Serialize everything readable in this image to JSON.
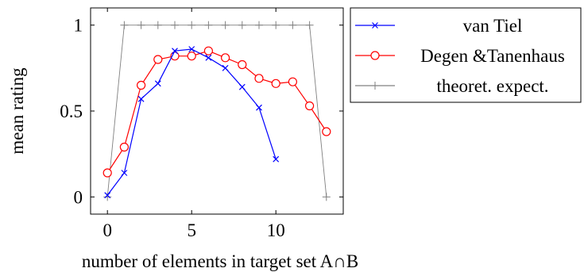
{
  "chart_data": {
    "type": "line",
    "xlabel": "number of elements in target set A∩B",
    "ylabel": "mean rating",
    "xlim": [
      -1,
      14
    ],
    "ylim": [
      -0.1,
      1.1
    ],
    "x_ticks": [
      0,
      5,
      10
    ],
    "x_tick_labels": [
      "0",
      "5",
      "10"
    ],
    "y_ticks": [
      0,
      0.5,
      1
    ],
    "y_tick_labels": [
      "0",
      "0.5",
      "1"
    ],
    "grid": false,
    "legend_position": "outside-right-top",
    "series": [
      {
        "name": "van Tiel",
        "color": "#0000ff",
        "marker": "x",
        "x": [
          0,
          1,
          2,
          3,
          4,
          5,
          6,
          7,
          8,
          9,
          10
        ],
        "y": [
          0.01,
          0.14,
          0.57,
          0.66,
          0.85,
          0.86,
          0.81,
          0.75,
          0.64,
          0.52,
          0.22
        ]
      },
      {
        "name": "Degen &Tanenhaus",
        "color": "#ff0000",
        "marker": "circle",
        "x": [
          0,
          1,
          2,
          3,
          4,
          5,
          6,
          7,
          8,
          9,
          10,
          11,
          12,
          13
        ],
        "y": [
          0.14,
          0.29,
          0.65,
          0.8,
          0.82,
          0.82,
          0.85,
          0.81,
          0.77,
          0.69,
          0.66,
          0.67,
          0.53,
          0.38
        ]
      },
      {
        "name": "theoret. expect.",
        "color": "#808080",
        "marker": "plus",
        "x": [
          0,
          1,
          2,
          3,
          4,
          5,
          6,
          7,
          8,
          9,
          10,
          11,
          12,
          13
        ],
        "y": [
          0,
          1,
          1,
          1,
          1,
          1,
          1,
          1,
          1,
          1,
          1,
          1,
          1,
          0
        ]
      }
    ]
  }
}
